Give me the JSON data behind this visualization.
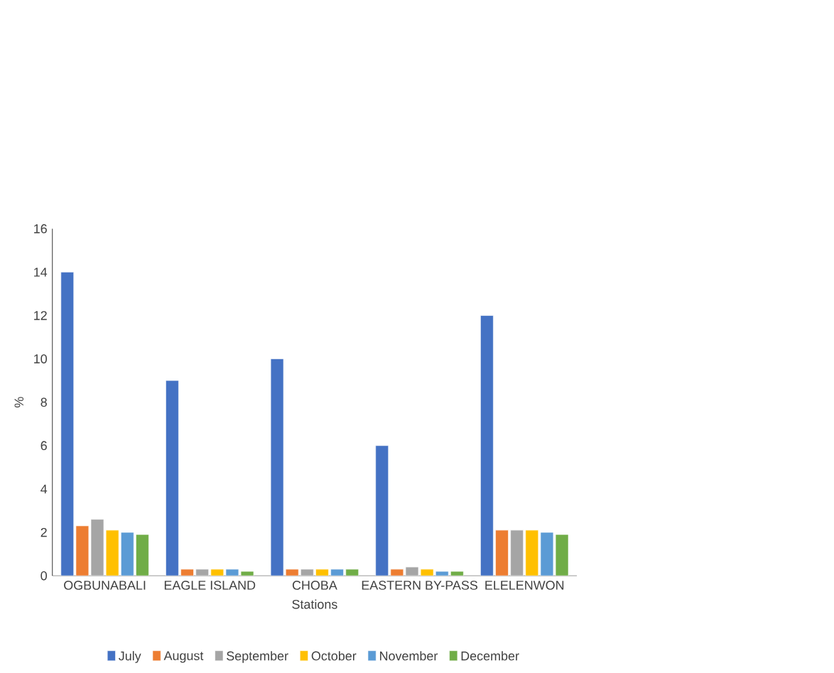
{
  "chart_data": {
    "type": "bar",
    "xlabel": "Stations",
    "ylabel": "%",
    "categories": [
      "OGBUNABALI",
      "EAGLE ISLAND",
      "CHOBA",
      "EASTERN BY-PASS",
      "ELELENWON"
    ],
    "series": [
      {
        "name": "July",
        "color": "#4472c4",
        "values": [
          14,
          9,
          10,
          6,
          12
        ]
      },
      {
        "name": "August",
        "color": "#ed7d31",
        "values": [
          2.3,
          0.3,
          0.3,
          0.3,
          2.1
        ]
      },
      {
        "name": "September",
        "color": "#a5a5a5",
        "values": [
          2.6,
          0.3,
          0.3,
          0.4,
          2.1
        ]
      },
      {
        "name": "October",
        "color": "#ffc000",
        "values": [
          2.1,
          0.3,
          0.3,
          0.3,
          2.1
        ]
      },
      {
        "name": "November",
        "color": "#5b9bd5",
        "values": [
          2.0,
          0.3,
          0.3,
          0.2,
          2.0
        ]
      },
      {
        "name": "December",
        "color": "#70ad47",
        "values": [
          1.9,
          0.2,
          0.3,
          0.2,
          1.9
        ]
      }
    ],
    "ylim": [
      0,
      16
    ],
    "yticks": [
      0,
      2,
      4,
      6,
      8,
      10,
      12,
      14,
      16
    ],
    "grid": false,
    "legend": "bottom"
  }
}
